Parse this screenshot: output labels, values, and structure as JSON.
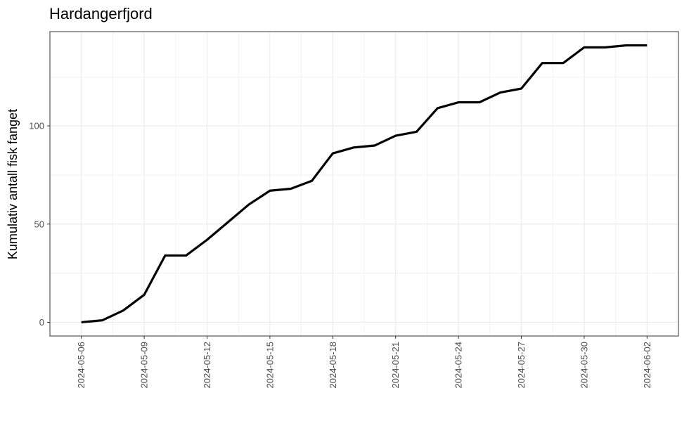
{
  "chart_data": {
    "type": "line",
    "title": "Hardangerfjord",
    "xlabel": "",
    "ylabel": "Kumulativ antall fisk fanget",
    "grid": true,
    "legend": "none",
    "xlim": [
      "2024-05-06",
      "2024-06-02"
    ],
    "ylim": [
      -7,
      148
    ],
    "x_ticks": [
      "2024-05-06",
      "2024-05-09",
      "2024-05-12",
      "2024-05-15",
      "2024-05-18",
      "2024-05-21",
      "2024-05-24",
      "2024-05-27",
      "2024-05-30",
      "2024-06-02"
    ],
    "y_ticks": [
      0,
      50,
      100
    ],
    "x": [
      "2024-05-06",
      "2024-05-07",
      "2024-05-08",
      "2024-05-09",
      "2024-05-10",
      "2024-05-11",
      "2024-05-12",
      "2024-05-13",
      "2024-05-14",
      "2024-05-15",
      "2024-05-16",
      "2024-05-17",
      "2024-05-18",
      "2024-05-19",
      "2024-05-20",
      "2024-05-21",
      "2024-05-22",
      "2024-05-23",
      "2024-05-24",
      "2024-05-25",
      "2024-05-26",
      "2024-05-27",
      "2024-05-28",
      "2024-05-29",
      "2024-05-30",
      "2024-05-31",
      "2024-06-01",
      "2024-06-02"
    ],
    "series": [
      {
        "values": [
          0,
          1,
          6,
          14,
          34,
          34,
          42,
          51,
          60,
          67,
          68,
          72,
          86,
          89,
          90,
          95,
          97,
          109,
          112,
          112,
          117,
          119,
          132,
          132,
          140,
          140,
          141,
          141
        ]
      }
    ],
    "colors": {
      "line": "#000000",
      "grid": "#ebebeb",
      "panel_border": "#333333",
      "tick_text": "#4d4d4d"
    }
  }
}
